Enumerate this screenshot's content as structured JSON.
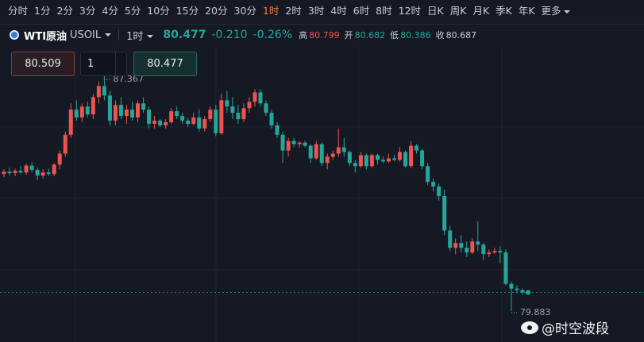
{
  "toolbar": {
    "periods": [
      "分时",
      "1分",
      "2分",
      "3分",
      "4分",
      "5分",
      "10分",
      "15分",
      "20分",
      "30分",
      "1时",
      "2时",
      "3时",
      "4时",
      "6时",
      "8时",
      "12时",
      "日K",
      "周K",
      "月K",
      "季K",
      "年K",
      "更多"
    ],
    "active_period": 10
  },
  "symbol_bar": {
    "name": "WTI原油",
    "code": "USOIL",
    "interval": "1时",
    "price": 80.477,
    "change": "-0.210",
    "change_pct": "-0.26%",
    "high_label": "高",
    "high": 80.799,
    "open_label": "开",
    "open": 80.682,
    "low_label": "低",
    "low": 80.386,
    "close_label": "收",
    "close": 80.687
  },
  "order_panel": {
    "sell": 80.509,
    "quantity": 1,
    "buy": 80.477
  },
  "chart": {
    "max_marker": 87.367,
    "min_marker": 79.883,
    "watermark": "@时空波段",
    "candles": [
      [
        84.25,
        84.4,
        84.15,
        84.32
      ],
      [
        84.32,
        84.45,
        84.2,
        84.28
      ],
      [
        84.28,
        84.42,
        84.18,
        84.35
      ],
      [
        84.35,
        84.5,
        84.25,
        84.3
      ],
      [
        84.3,
        84.58,
        84.22,
        84.52
      ],
      [
        84.52,
        84.62,
        84.3,
        84.38
      ],
      [
        84.38,
        84.45,
        84.05,
        84.2
      ],
      [
        84.2,
        84.4,
        84.1,
        84.3
      ],
      [
        84.3,
        84.42,
        84.2,
        84.25
      ],
      [
        84.25,
        84.6,
        84.18,
        84.55
      ],
      [
        84.55,
        85.0,
        84.4,
        84.9
      ],
      [
        84.9,
        85.6,
        84.8,
        85.5
      ],
      [
        85.5,
        86.5,
        85.4,
        86.3
      ],
      [
        86.3,
        86.6,
        85.95,
        86.05
      ],
      [
        86.05,
        86.5,
        85.9,
        86.4
      ],
      [
        86.4,
        86.55,
        86.05,
        86.15
      ],
      [
        86.15,
        86.8,
        86.0,
        86.7
      ],
      [
        86.7,
        87.2,
        86.5,
        87.05
      ],
      [
        87.05,
        87.367,
        86.6,
        86.75
      ],
      [
        86.75,
        86.9,
        85.8,
        85.95
      ],
      [
        85.95,
        86.6,
        85.8,
        86.45
      ],
      [
        86.45,
        86.7,
        86.0,
        86.1
      ],
      [
        86.1,
        86.45,
        85.85,
        86.3
      ],
      [
        86.3,
        86.55,
        85.95,
        86.05
      ],
      [
        86.05,
        86.6,
        85.9,
        86.5
      ],
      [
        86.5,
        86.7,
        86.2,
        86.3
      ],
      [
        86.3,
        86.4,
        85.7,
        85.85
      ],
      [
        85.85,
        86.1,
        85.7,
        85.95
      ],
      [
        85.95,
        86.0,
        85.75,
        85.8
      ],
      [
        85.8,
        86.0,
        85.7,
        85.9
      ],
      [
        85.9,
        86.35,
        85.85,
        86.25
      ],
      [
        86.25,
        86.4,
        86.0,
        86.1
      ],
      [
        86.1,
        86.2,
        85.85,
        85.95
      ],
      [
        85.95,
        86.05,
        85.75,
        85.85
      ],
      [
        85.85,
        86.2,
        85.8,
        86.05
      ],
      [
        86.05,
        86.3,
        85.6,
        85.7
      ],
      [
        85.7,
        86.1,
        85.6,
        86.0
      ],
      [
        86.0,
        86.4,
        85.9,
        86.3
      ],
      [
        86.3,
        86.45,
        85.45,
        85.55
      ],
      [
        85.55,
        86.8,
        85.5,
        86.6
      ],
      [
        86.6,
        86.9,
        86.2,
        86.4
      ],
      [
        86.4,
        86.7,
        86.0,
        86.2
      ],
      [
        86.2,
        86.45,
        85.85,
        86.0
      ],
      [
        86.0,
        86.5,
        85.9,
        86.35
      ],
      [
        86.35,
        86.7,
        86.2,
        86.55
      ],
      [
        86.55,
        86.95,
        86.4,
        86.85
      ],
      [
        86.85,
        86.95,
        86.4,
        86.5
      ],
      [
        86.5,
        86.6,
        86.1,
        86.2
      ],
      [
        86.2,
        86.3,
        85.7,
        85.8
      ],
      [
        85.8,
        85.9,
        85.4,
        85.5
      ],
      [
        85.5,
        85.6,
        84.6,
        85.0
      ],
      [
        85.0,
        85.4,
        84.8,
        85.3
      ],
      [
        85.3,
        85.4,
        85.1,
        85.2
      ],
      [
        85.2,
        85.3,
        85.1,
        85.25
      ],
      [
        85.25,
        85.3,
        85.1,
        85.15
      ],
      [
        85.15,
        85.2,
        84.6,
        84.75
      ],
      [
        84.75,
        85.3,
        84.7,
        85.2
      ],
      [
        85.2,
        85.25,
        84.5,
        84.6
      ],
      [
        84.6,
        84.9,
        84.4,
        84.8
      ],
      [
        84.8,
        85.0,
        84.7,
        84.9
      ],
      [
        84.9,
        85.7,
        84.8,
        85.1
      ],
      [
        85.1,
        85.4,
        84.8,
        84.95
      ],
      [
        84.95,
        85.0,
        84.5,
        84.6
      ],
      [
        84.6,
        84.7,
        84.3,
        84.5
      ],
      [
        84.5,
        84.95,
        84.45,
        84.85
      ],
      [
        84.85,
        84.9,
        84.4,
        84.5
      ],
      [
        84.5,
        84.9,
        84.45,
        84.85
      ],
      [
        84.85,
        84.9,
        84.55,
        84.7
      ],
      [
        84.7,
        84.8,
        84.6,
        84.65
      ],
      [
        84.65,
        84.9,
        84.6,
        84.75
      ],
      [
        84.75,
        84.85,
        84.65,
        84.7
      ],
      [
        84.7,
        85.1,
        84.65,
        84.95
      ],
      [
        84.95,
        85.0,
        84.45,
        84.5
      ],
      [
        84.5,
        85.3,
        84.45,
        85.15
      ],
      [
        85.15,
        85.2,
        84.9,
        85.0
      ],
      [
        85.0,
        85.05,
        84.4,
        84.5
      ],
      [
        84.5,
        84.6,
        83.9,
        84.0
      ],
      [
        84.0,
        84.1,
        83.7,
        83.85
      ],
      [
        83.85,
        83.95,
        83.4,
        83.55
      ],
      [
        83.55,
        83.75,
        82.3,
        82.45
      ],
      [
        82.45,
        82.6,
        81.8,
        81.9
      ],
      [
        81.9,
        82.2,
        81.7,
        82.05
      ],
      [
        82.05,
        82.3,
        81.75,
        81.9
      ],
      [
        81.9,
        82.1,
        81.6,
        81.75
      ],
      [
        81.75,
        82.2,
        81.7,
        82.1
      ],
      [
        82.1,
        82.75,
        81.8,
        82.0
      ],
      [
        82.0,
        82.05,
        81.5,
        81.7
      ],
      [
        81.7,
        81.85,
        81.6,
        81.75
      ],
      [
        81.75,
        81.9,
        81.7,
        81.8
      ],
      [
        81.8,
        81.95,
        81.4,
        81.75
      ],
      [
        81.75,
        81.85,
        80.7,
        80.75
      ],
      [
        80.75,
        80.82,
        79.883,
        80.6
      ],
      [
        80.6,
        80.7,
        80.45,
        80.55
      ],
      [
        80.55,
        80.6,
        80.4,
        80.48
      ],
      [
        80.48,
        80.5,
        80.44,
        80.477
      ]
    ]
  }
}
